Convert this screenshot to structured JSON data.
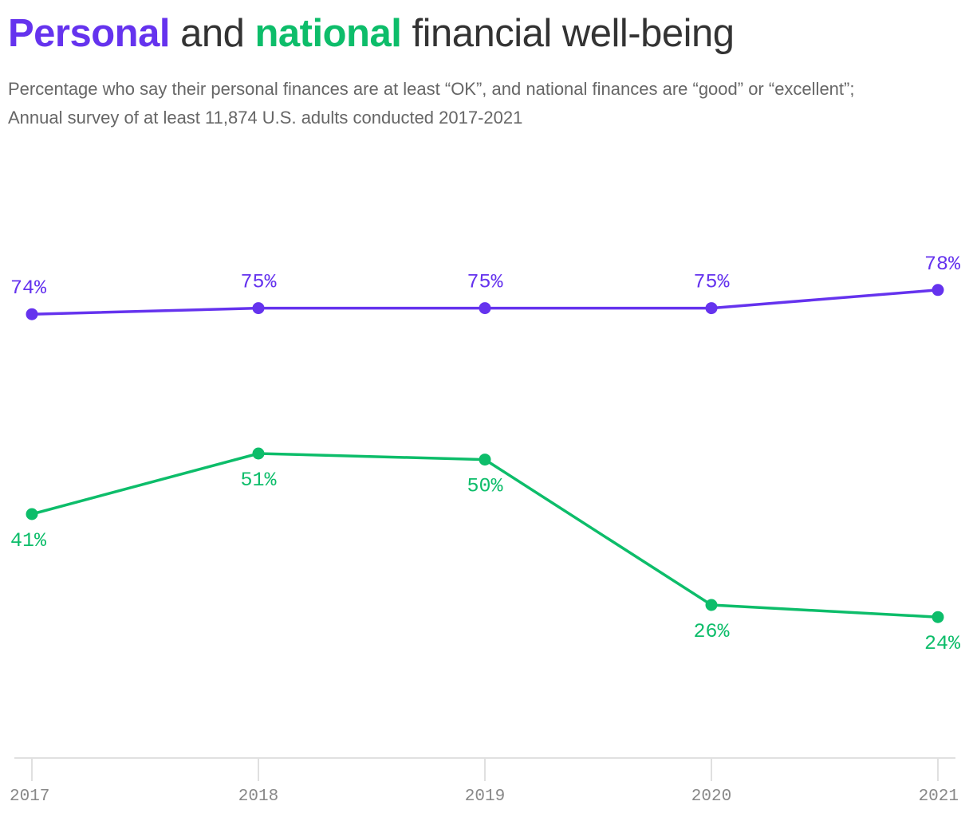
{
  "title": {
    "word_personal": "Personal",
    "word_and": "and",
    "word_national": "national",
    "word_rest": "financial well-being"
  },
  "subtitle": {
    "line1": "Percentage who say their personal finances are at least “OK”, and national finances are “good” or “excellent”;",
    "line2": "Annual survey of at least 11,874 U.S. adults conducted 2017-2021"
  },
  "colors": {
    "personal": "#6533ee",
    "national": "#0dbd6a",
    "title_text": "#333333",
    "subtitle_text": "#666666",
    "axis": "#e0e0e0",
    "tick_label": "#888888"
  },
  "chart_data": {
    "type": "line",
    "title": "Personal and national financial well-being",
    "xlabel": "",
    "ylabel": "",
    "categories": [
      "2017",
      "2018",
      "2019",
      "2020",
      "2021"
    ],
    "ylim": [
      0,
      100
    ],
    "grid": false,
    "series": [
      {
        "key": "personal",
        "name": "Personal",
        "values": [
          74,
          75,
          75,
          75,
          78
        ],
        "labels": [
          "74%",
          "75%",
          "75%",
          "75%",
          "78%"
        ]
      },
      {
        "key": "national",
        "name": "National",
        "values": [
          41,
          51,
          50,
          26,
          24
        ],
        "labels": [
          "41%",
          "51%",
          "50%",
          "26%",
          "24%"
        ]
      }
    ]
  }
}
